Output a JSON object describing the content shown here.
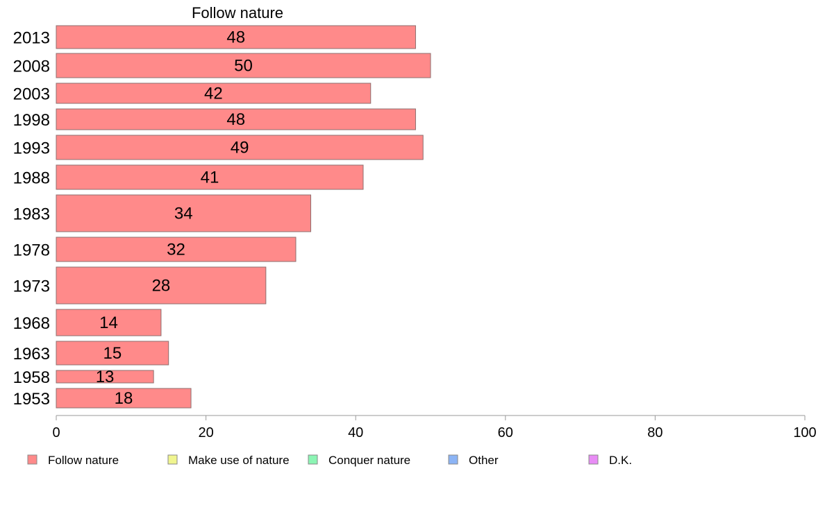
{
  "chart_data": {
    "type": "bar",
    "orientation": "horizontal",
    "title": "Follow nature",
    "xlabel": "",
    "ylabel": "",
    "categories": [
      "2013",
      "2008",
      "2003",
      "1998",
      "1993",
      "1988",
      "1983",
      "1978",
      "1973",
      "1968",
      "1963",
      "1958",
      "1953"
    ],
    "series": [
      {
        "name": "Follow nature",
        "values": [
          48,
          50,
          42,
          48,
          49,
          41,
          34,
          32,
          28,
          14,
          15,
          13,
          18
        ]
      }
    ],
    "xlim": [
      0,
      100
    ],
    "x_ticks": [
      "0",
      "20",
      "40",
      "60",
      "80",
      "100"
    ],
    "grid": false,
    "legend": {
      "placement": "bottom",
      "entries": [
        "Follow nature",
        "Make use of nature",
        "Conquer nature",
        "Other",
        "D.K."
      ],
      "colors": [
        "#ff8a8a",
        "#f0f58f",
        "#8cf5b4",
        "#8cb4f5",
        "#e88cf5"
      ]
    },
    "bar_color": "#ff8a8a",
    "bar_edge_color": "#8c6f6f"
  }
}
